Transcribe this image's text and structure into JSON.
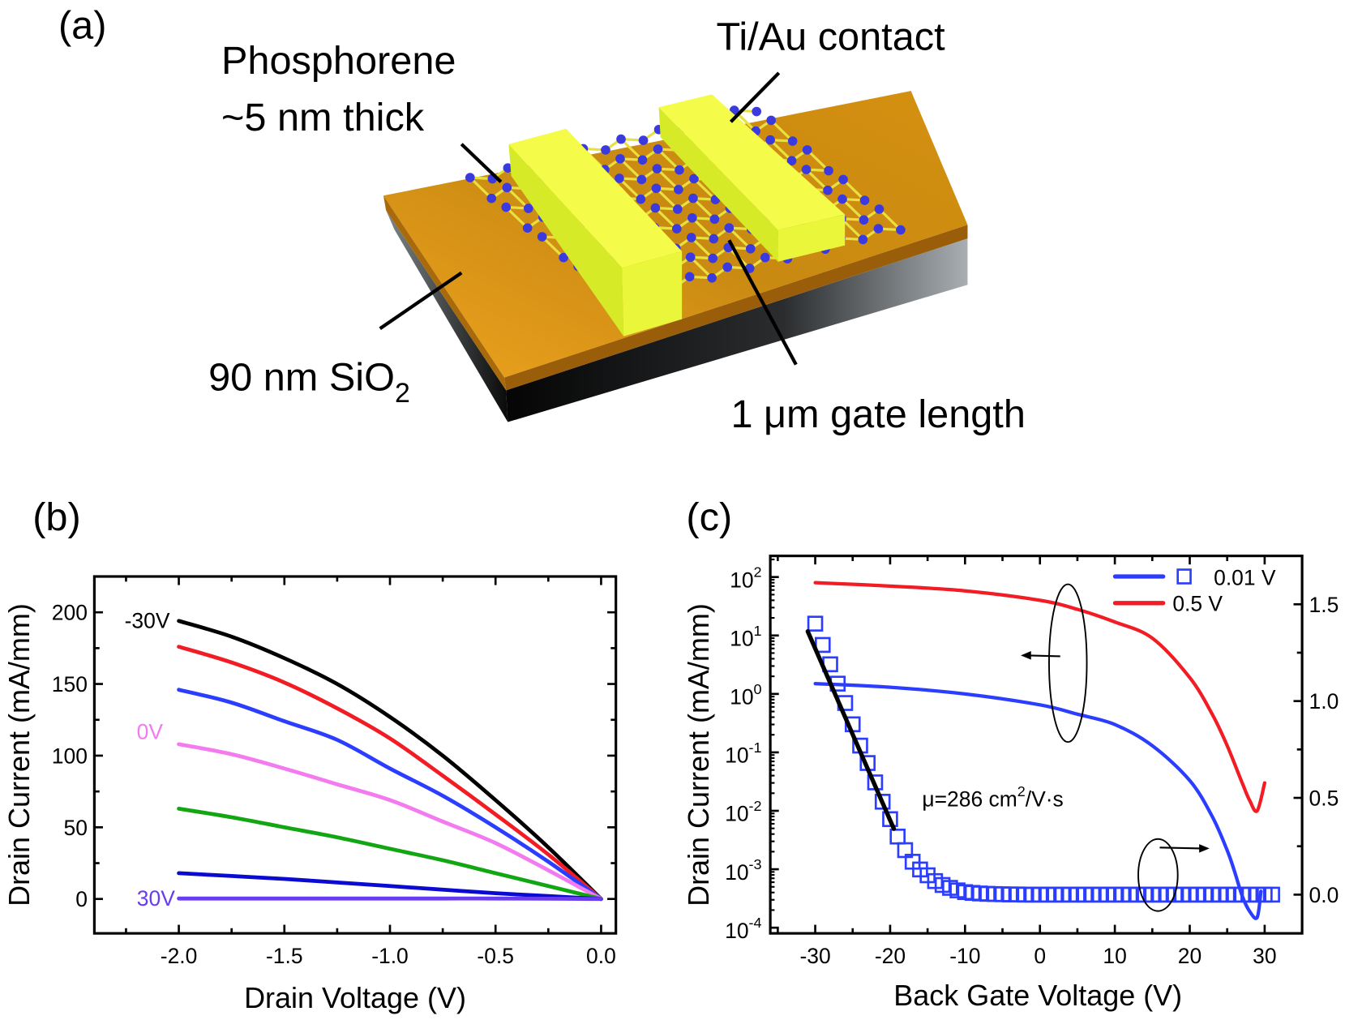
{
  "panel_a": {
    "label": "(a)",
    "labels": {
      "phosphorene": "Phosphorene",
      "thickness": "~5 nm thick",
      "contact": "Ti/Au contact",
      "oxide": "90 nm SiO",
      "oxide_sub": "2",
      "gate": "1 μm gate length"
    },
    "colors": {
      "oxide": "#d8900f",
      "contact": "#f2fa3a",
      "atom": "#3a3adf",
      "bond": "#e8e040",
      "substrate": "#1a1a1a"
    }
  },
  "panel_b": {
    "label": "(b)"
  },
  "panel_c": {
    "label": "(c)"
  },
  "chart_data": [
    {
      "type": "line",
      "xlabel": "Drain Voltage (V)",
      "ylabel": "Drain Current (mA/mm)",
      "xlim": [
        -2.4,
        0.07
      ],
      "ylim": [
        -24,
        225
      ],
      "xticks": [
        -2.0,
        -1.5,
        -1.0,
        -0.5,
        0.0
      ],
      "xtick_labels": [
        "-2.0",
        "-1.5",
        "-1.0",
        "-0.5",
        "0.0"
      ],
      "yticks": [
        0,
        50,
        100,
        150,
        200
      ],
      "ytick_labels": [
        "0",
        "50",
        "100",
        "150",
        "200"
      ],
      "grid": false,
      "x": [
        -2.0,
        -1.75,
        -1.5,
        -1.25,
        -1.0,
        -0.75,
        -0.5,
        -0.25,
        0.0
      ],
      "series": [
        {
          "color": "#000000",
          "values": [
            194,
            183,
            168,
            150,
            127,
            100,
            69,
            36,
            0
          ]
        },
        {
          "color": "#f21c24",
          "values": [
            176,
            165,
            151,
            133,
            112,
            86,
            59,
            31,
            0
          ]
        },
        {
          "color": "#2b3dff",
          "values": [
            146,
            137,
            124,
            111,
            91,
            72,
            50,
            26,
            0
          ]
        },
        {
          "color": "#f47af0",
          "values": [
            108,
            101,
            91,
            80,
            69,
            54,
            39,
            20,
            0
          ]
        },
        {
          "color": "#13a613",
          "values": [
            63,
            57,
            50,
            43,
            35,
            27,
            18,
            9,
            0
          ]
        },
        {
          "color": "#0a0ad2",
          "values": [
            18,
            16,
            14,
            11.5,
            9,
            6.5,
            4,
            2,
            0
          ]
        },
        {
          "color": "#6a3cf0",
          "values": [
            0.3,
            0.3,
            0.3,
            0.3,
            0.3,
            0.3,
            0.3,
            0.2,
            0
          ]
        }
      ],
      "annotations": [
        {
          "text": "-30V",
          "color": "#000000"
        },
        {
          "text": "0V",
          "color": "#f47af0"
        },
        {
          "text": "30V",
          "color": "#6a3cf0"
        }
      ]
    },
    {
      "type": "line",
      "xlabel": "Back Gate Voltage (V)",
      "ylabel": "Drain Current (mA/mm)",
      "xlim": [
        -36,
        35
      ],
      "ylim_log": [
        8e-05,
        230
      ],
      "yscale": "log",
      "y2lim": [
        -0.2,
        1.75
      ],
      "xticks": [
        -30,
        -20,
        -10,
        0,
        10,
        20,
        30
      ],
      "xtick_labels": [
        "-30",
        "-20",
        "-10",
        "0",
        "10",
        "20",
        "30"
      ],
      "yticks_log": [
        {
          "base": "10",
          "exp": "2"
        },
        {
          "base": "10",
          "exp": "1"
        },
        {
          "base": "10",
          "exp": "0"
        },
        {
          "base": "10",
          "exp": "-1"
        },
        {
          "base": "10",
          "exp": "-2"
        },
        {
          "base": "10",
          "exp": "-3"
        },
        {
          "base": "10",
          "exp": "-4"
        }
      ],
      "y2ticks": [
        0.0,
        0.5,
        1.0,
        1.5
      ],
      "y2tick_labels": [
        "0.0",
        "0.5",
        "1.0",
        "1.5"
      ],
      "grid": false,
      "legend": {
        "placement": "top-right",
        "entries": [
          "0.01 V",
          "0.5 V"
        ]
      },
      "series": [
        {
          "name": "0.5 V",
          "axis": "left-log",
          "color": "#f21c24",
          "x": [
            -30,
            -20,
            -10,
            0,
            5,
            10,
            15,
            20,
            23,
            25,
            27,
            28,
            29,
            30
          ],
          "values": [
            80,
            70,
            58,
            40,
            28,
            17,
            9,
            1.9,
            0.45,
            0.13,
            0.03,
            0.015,
            0.01,
            0.03
          ]
        },
        {
          "name": "0.01 V",
          "axis": "left-log",
          "color": "#2b3dff",
          "x": [
            -30,
            -20,
            -10,
            0,
            5,
            10,
            15,
            20,
            23,
            25,
            26,
            27,
            28,
            29,
            29.5
          ],
          "values": [
            1.5,
            1.3,
            1.0,
            0.65,
            0.45,
            0.3,
            0.13,
            0.033,
            0.008,
            0.0021,
            0.0009,
            0.00035,
            0.00019,
            0.00015,
            0.00042
          ]
        },
        {
          "name": "0.01 V",
          "axis": "right-linear",
          "marker": "open-square",
          "color": "#2b3dff",
          "x": [
            -30,
            -29,
            -28,
            -27,
            -26,
            -25,
            -24,
            -23,
            -22,
            -21,
            -20,
            -19,
            -18,
            -17,
            -16,
            -15,
            -14,
            -13,
            -12,
            -11,
            -10,
            -9,
            -8,
            -7,
            -6,
            -5,
            -4,
            -3,
            -2,
            -1,
            0,
            1,
            2,
            3,
            4,
            5,
            6,
            7,
            8,
            9,
            10,
            11,
            12,
            13,
            14,
            15,
            16,
            17,
            18,
            19,
            20,
            21,
            22,
            23,
            24,
            25,
            26,
            27,
            28,
            29,
            30,
            31
          ],
          "values": [
            1.4,
            1.29,
            1.19,
            1.09,
            0.99,
            0.88,
            0.77,
            0.68,
            0.58,
            0.48,
            0.39,
            0.3,
            0.23,
            0.17,
            0.13,
            0.1,
            0.07,
            0.05,
            0.035,
            0.022,
            0.013,
            0.009,
            0.006,
            0.004,
            0.003,
            0.002,
            0.001,
            0.001,
            0,
            0,
            0,
            0,
            0,
            0,
            0,
            0,
            0,
            0,
            0,
            0,
            0,
            0,
            0,
            0,
            0,
            0,
            0,
            0,
            0,
            0,
            0,
            0,
            0,
            0,
            0,
            0,
            0,
            0,
            0,
            0,
            0,
            0
          ]
        },
        {
          "name": "",
          "axis": "right-linear",
          "color": "#000000",
          "x": [
            -31,
            -19.5
          ],
          "values": [
            1.36,
            0.34
          ]
        }
      ],
      "annotation": {
        "before": "μ=286 cm",
        "sup": "2",
        "after": "/V·s"
      }
    }
  ]
}
